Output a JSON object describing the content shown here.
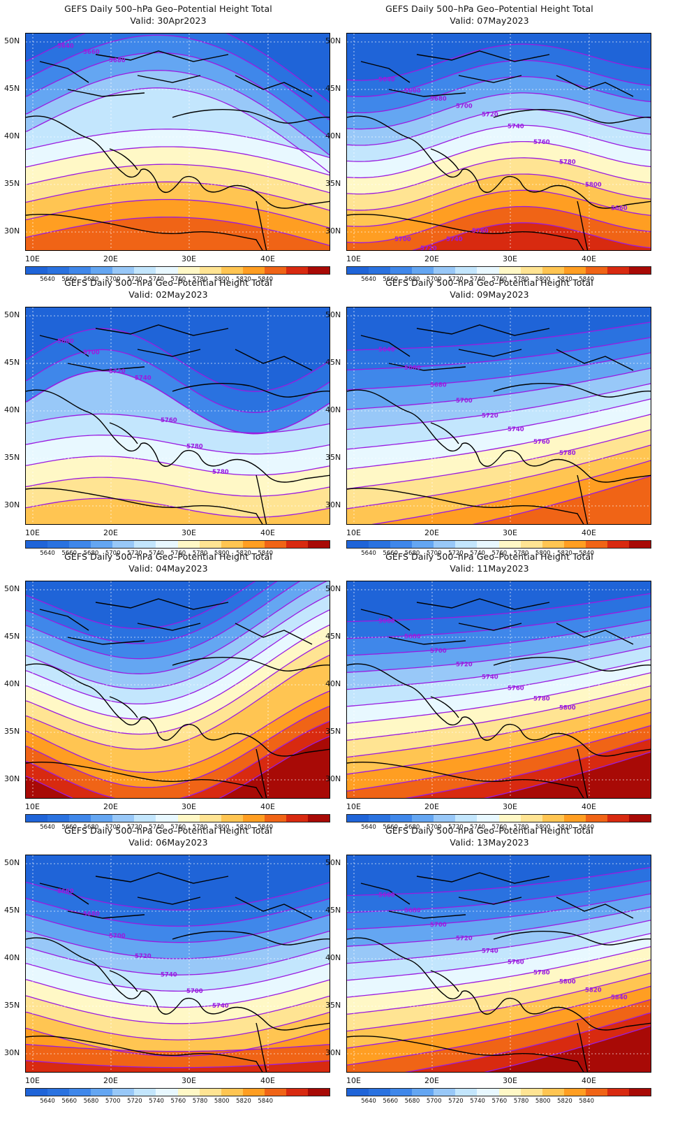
{
  "colors": {
    "levels": [
      "#1f64d8",
      "#2a72e0",
      "#3f87ea",
      "#64a6f2",
      "#98c8f8",
      "#c3e6fd",
      "#e8f8ff",
      "#fff8c6",
      "#ffe493",
      "#ffc552",
      "#ff9e22",
      "#f06416",
      "#d82a10",
      "#a80a06"
    ],
    "contour": "#9a1be0",
    "coast": "#000000"
  },
  "axes": {
    "lat_labels": [
      "50N",
      "45N",
      "40N",
      "35N",
      "30N"
    ],
    "lon_labels": [
      "10E",
      "20E",
      "30E",
      "40E"
    ]
  },
  "colorbar_labels": [
    "5640",
    "5660",
    "5680",
    "5700",
    "5720",
    "5740",
    "5760",
    "5780",
    "5800",
    "5820",
    "5840"
  ],
  "panels": [
    {
      "title": "GEFS Daily 500–hPa Geo–Potential Height Total",
      "valid": "Valid:  30Apr2023",
      "fill_levels": [
        0,
        1,
        2,
        3,
        4,
        5,
        6,
        7,
        8,
        9,
        10,
        11
      ],
      "shape": "trough-east",
      "contour_labels": [
        "5640",
        "5660",
        "5680"
      ]
    },
    {
      "title": "GEFS Daily 500–hPa Geo–Potential Height Total",
      "valid": "Valid:  07May2023",
      "fill_levels": [
        0,
        1,
        2,
        3,
        4,
        5,
        6,
        7,
        8,
        9,
        10,
        11,
        12
      ],
      "shape": "zonal",
      "contour_labels": [
        "5640",
        "5660",
        "5680",
        "5700",
        "5720",
        "5740",
        "5760",
        "5780",
        "5800",
        "5660",
        "5700",
        "5720",
        "5740",
        "5760"
      ]
    },
    {
      "title": "GEFS Daily 500–hPa Geo–Potential Height Total",
      "valid": "Valid:  02May2023",
      "fill_levels": [
        0,
        1,
        2,
        3,
        4,
        5,
        6,
        7,
        8,
        9
      ],
      "shape": "ridge-center",
      "contour_labels": [
        "5680",
        "5700",
        "5720",
        "5740",
        "5760",
        "5780",
        "5780"
      ]
    },
    {
      "title": "GEFS Daily 500–hPa Geo–Potential Height Total",
      "valid": "Valid:  09May2023",
      "fill_levels": [
        0,
        1,
        2,
        3,
        4,
        5,
        6,
        7,
        8,
        9,
        10,
        11
      ],
      "shape": "zonal-tilt",
      "contour_labels": [
        "5640",
        "5660",
        "5680",
        "5700",
        "5720",
        "5740",
        "5760",
        "5780"
      ]
    },
    {
      "title": "GEFS Daily 500–hPa Geo–Potential Height Total",
      "valid": "Valid:  04May2023",
      "fill_levels": [
        0,
        1,
        2,
        3,
        4,
        5,
        6,
        7,
        8,
        9,
        10,
        11,
        12,
        13
      ],
      "shape": "trough-west",
      "contour_labels": []
    },
    {
      "title": "GEFS Daily 500–hPa Geo–Potential Height Total",
      "valid": "Valid:  11May2023",
      "fill_levels": [
        0,
        1,
        2,
        3,
        4,
        5,
        6,
        7,
        8,
        9,
        10,
        11,
        12,
        13
      ],
      "shape": "zonal-tilt",
      "contour_labels": [
        "5660",
        "5680",
        "5700",
        "5720",
        "5740",
        "5760",
        "5780",
        "5800"
      ]
    },
    {
      "title": "GEFS Daily 500–hPa Geo–Potential Height Total",
      "valid": "Valid:  06May2023",
      "fill_levels": [
        0,
        1,
        2,
        3,
        4,
        5,
        6,
        7,
        8,
        9,
        10,
        11,
        12
      ],
      "shape": "trough-center",
      "contour_labels": [
        "5660",
        "5680",
        "5700",
        "5720",
        "5740",
        "5700",
        "5740"
      ]
    },
    {
      "title": "GEFS Daily 500–hPa Geo–Potential Height Total",
      "valid": "Valid:  13May2023",
      "fill_levels": [
        0,
        1,
        2,
        3,
        4,
        5,
        6,
        7,
        8,
        9,
        10,
        11,
        12,
        13
      ],
      "shape": "zonal-tilt",
      "contour_labels": [
        "5660",
        "5680",
        "5700",
        "5720",
        "5740",
        "5760",
        "5780",
        "5800",
        "5820",
        "5840"
      ]
    }
  ]
}
